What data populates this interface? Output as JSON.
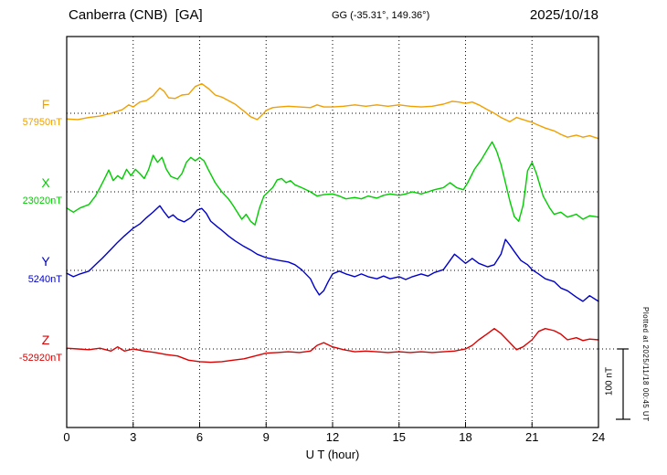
{
  "header": {
    "station": "Canberra (CNB)  [GA]",
    "coords": "GG (-35.31°, 149.36°)",
    "date": "2025/10/18"
  },
  "axis": {
    "xlabel": "U T (hour)",
    "ticks": [
      0,
      3,
      6,
      9,
      12,
      15,
      18,
      21,
      24
    ],
    "xmin": 0,
    "xmax": 24
  },
  "scale_bar": {
    "label": "100 nT",
    "nT": 100
  },
  "plotted_at": "Plotted at 2025/11/18 00:45 UT",
  "chart_data": {
    "type": "line",
    "title": "Canberra (CNB) [GA] magnetogram 2025/10/18",
    "xlabel": "U T (hour)",
    "x_range": [
      0,
      24
    ],
    "offset_unit": "nT relative to component baseline",
    "grid": "dotted vertical every 3 h, dotted horizontal at each baseline",
    "series": [
      {
        "name": "F",
        "baseline_label": "57950nT",
        "baseline_nT": 57950,
        "color": "#f0a000",
        "points": [
          [
            0,
            -8
          ],
          [
            0.5,
            -9
          ],
          [
            1,
            -6
          ],
          [
            1.5,
            -4
          ],
          [
            2,
            0
          ],
          [
            2.5,
            5
          ],
          [
            2.8,
            12
          ],
          [
            3,
            9
          ],
          [
            3.3,
            16
          ],
          [
            3.6,
            18
          ],
          [
            3.9,
            25
          ],
          [
            4.2,
            36
          ],
          [
            4.4,
            31
          ],
          [
            4.6,
            22
          ],
          [
            4.9,
            21
          ],
          [
            5.2,
            26
          ],
          [
            5.5,
            27
          ],
          [
            5.8,
            38
          ],
          [
            6.1,
            42
          ],
          [
            6.4,
            35
          ],
          [
            6.7,
            26
          ],
          [
            7,
            23
          ],
          [
            7.3,
            18
          ],
          [
            7.6,
            13
          ],
          [
            8,
            3
          ],
          [
            8.3,
            -5
          ],
          [
            8.6,
            -9
          ],
          [
            8.8,
            -3
          ],
          [
            9,
            4
          ],
          [
            9.3,
            8
          ],
          [
            9.6,
            9
          ],
          [
            10,
            10
          ],
          [
            10.5,
            9
          ],
          [
            11,
            8
          ],
          [
            11.3,
            12
          ],
          [
            11.6,
            9
          ],
          [
            12,
            9
          ],
          [
            12.5,
            10
          ],
          [
            13,
            12
          ],
          [
            13.5,
            10
          ],
          [
            14,
            12
          ],
          [
            14.5,
            10
          ],
          [
            15,
            12
          ],
          [
            15.5,
            10
          ],
          [
            16,
            9
          ],
          [
            16.5,
            10
          ],
          [
            17,
            13
          ],
          [
            17.4,
            17
          ],
          [
            17.7,
            16
          ],
          [
            18,
            14
          ],
          [
            18.3,
            16
          ],
          [
            18.6,
            12
          ],
          [
            19,
            5
          ],
          [
            19.3,
            0
          ],
          [
            19.6,
            -6
          ],
          [
            20,
            -12
          ],
          [
            20.3,
            -6
          ],
          [
            20.6,
            -9
          ],
          [
            21,
            -13
          ],
          [
            21.3,
            -17
          ],
          [
            21.6,
            -21
          ],
          [
            22,
            -25
          ],
          [
            22.3,
            -30
          ],
          [
            22.6,
            -34
          ],
          [
            23,
            -31
          ],
          [
            23.3,
            -34
          ],
          [
            23.6,
            -32
          ],
          [
            24,
            -36
          ]
        ]
      },
      {
        "name": "X",
        "baseline_label": "23020nT",
        "baseline_nT": 23020,
        "color": "#00cc00",
        "points": [
          [
            0,
            -23
          ],
          [
            0.3,
            -29
          ],
          [
            0.6,
            -23
          ],
          [
            1,
            -18
          ],
          [
            1.3,
            -6
          ],
          [
            1.5,
            6
          ],
          [
            1.7,
            18
          ],
          [
            1.9,
            31
          ],
          [
            2.1,
            16
          ],
          [
            2.3,
            23
          ],
          [
            2.5,
            18
          ],
          [
            2.7,
            32
          ],
          [
            2.9,
            23
          ],
          [
            3.1,
            32
          ],
          [
            3.3,
            26
          ],
          [
            3.5,
            19
          ],
          [
            3.7,
            32
          ],
          [
            3.9,
            52
          ],
          [
            4.1,
            42
          ],
          [
            4.3,
            49
          ],
          [
            4.5,
            32
          ],
          [
            4.7,
            22
          ],
          [
            5,
            18
          ],
          [
            5.2,
            26
          ],
          [
            5.4,
            42
          ],
          [
            5.6,
            49
          ],
          [
            5.8,
            44
          ],
          [
            6,
            49
          ],
          [
            6.2,
            44
          ],
          [
            6.4,
            31
          ],
          [
            6.7,
            13
          ],
          [
            7,
            0
          ],
          [
            7.3,
            -10
          ],
          [
            7.5,
            -19
          ],
          [
            7.7,
            -29
          ],
          [
            7.9,
            -39
          ],
          [
            8.1,
            -32
          ],
          [
            8.3,
            -42
          ],
          [
            8.5,
            -47
          ],
          [
            8.7,
            -23
          ],
          [
            8.9,
            -6
          ],
          [
            9.1,
            0
          ],
          [
            9.3,
            6
          ],
          [
            9.5,
            17
          ],
          [
            9.7,
            19
          ],
          [
            9.9,
            13
          ],
          [
            10.1,
            16
          ],
          [
            10.3,
            10
          ],
          [
            10.6,
            6
          ],
          [
            11,
            0
          ],
          [
            11.3,
            -6
          ],
          [
            11.6,
            -4
          ],
          [
            12,
            -3
          ],
          [
            12.3,
            -6
          ],
          [
            12.6,
            -10
          ],
          [
            13,
            -8
          ],
          [
            13.3,
            -10
          ],
          [
            13.6,
            -6
          ],
          [
            14,
            -9
          ],
          [
            14.3,
            -5
          ],
          [
            14.6,
            -3
          ],
          [
            15,
            -5
          ],
          [
            15.3,
            -3
          ],
          [
            15.6,
            0
          ],
          [
            16,
            -3
          ],
          [
            16.3,
            0
          ],
          [
            16.6,
            3
          ],
          [
            17,
            6
          ],
          [
            17.3,
            13
          ],
          [
            17.6,
            6
          ],
          [
            17.9,
            3
          ],
          [
            18.1,
            13
          ],
          [
            18.4,
            32
          ],
          [
            18.7,
            45
          ],
          [
            19,
            61
          ],
          [
            19.2,
            71
          ],
          [
            19.4,
            58
          ],
          [
            19.6,
            39
          ],
          [
            19.8,
            13
          ],
          [
            20,
            -13
          ],
          [
            20.2,
            -35
          ],
          [
            20.4,
            -42
          ],
          [
            20.6,
            -19
          ],
          [
            20.7,
            5
          ],
          [
            20.8,
            30
          ],
          [
            21,
            42
          ],
          [
            21.2,
            26
          ],
          [
            21.5,
            -6
          ],
          [
            21.8,
            -23
          ],
          [
            22,
            -32
          ],
          [
            22.3,
            -29
          ],
          [
            22.6,
            -36
          ],
          [
            23,
            -32
          ],
          [
            23.3,
            -39
          ],
          [
            23.6,
            -34
          ],
          [
            24,
            -36
          ]
        ]
      },
      {
        "name": "Y",
        "baseline_label": "5240nT",
        "baseline_nT": 5240,
        "color": "#0000cc",
        "points": [
          [
            0,
            -4
          ],
          [
            0.3,
            -9
          ],
          [
            0.6,
            -5
          ],
          [
            1,
            -1
          ],
          [
            1.3,
            8
          ],
          [
            1.6,
            17
          ],
          [
            2,
            30
          ],
          [
            2.3,
            40
          ],
          [
            2.6,
            49
          ],
          [
            3,
            60
          ],
          [
            3.3,
            66
          ],
          [
            3.6,
            75
          ],
          [
            3.9,
            83
          ],
          [
            4.2,
            92
          ],
          [
            4.4,
            83
          ],
          [
            4.6,
            75
          ],
          [
            4.8,
            79
          ],
          [
            5,
            73
          ],
          [
            5.3,
            69
          ],
          [
            5.6,
            75
          ],
          [
            5.9,
            86
          ],
          [
            6.1,
            88
          ],
          [
            6.3,
            81
          ],
          [
            6.5,
            70
          ],
          [
            6.8,
            62
          ],
          [
            7,
            57
          ],
          [
            7.3,
            49
          ],
          [
            7.6,
            42
          ],
          [
            8,
            34
          ],
          [
            8.3,
            29
          ],
          [
            8.6,
            23
          ],
          [
            9,
            18
          ],
          [
            9.3,
            16
          ],
          [
            9.6,
            14
          ],
          [
            10,
            12
          ],
          [
            10.3,
            8
          ],
          [
            10.6,
            1
          ],
          [
            11,
            -12
          ],
          [
            11.2,
            -25
          ],
          [
            11.4,
            -35
          ],
          [
            11.6,
            -29
          ],
          [
            11.8,
            -16
          ],
          [
            12,
            -5
          ],
          [
            12.3,
            -1
          ],
          [
            12.6,
            -5
          ],
          [
            13,
            -9
          ],
          [
            13.3,
            -5
          ],
          [
            13.6,
            -9
          ],
          [
            14,
            -12
          ],
          [
            14.3,
            -8
          ],
          [
            14.6,
            -12
          ],
          [
            15,
            -9
          ],
          [
            15.3,
            -13
          ],
          [
            15.6,
            -9
          ],
          [
            16,
            -5
          ],
          [
            16.3,
            -8
          ],
          [
            16.6,
            -3
          ],
          [
            17,
            1
          ],
          [
            17.3,
            14
          ],
          [
            17.5,
            23
          ],
          [
            17.7,
            18
          ],
          [
            18,
            10
          ],
          [
            18.3,
            17
          ],
          [
            18.6,
            10
          ],
          [
            19,
            5
          ],
          [
            19.3,
            8
          ],
          [
            19.6,
            23
          ],
          [
            19.8,
            44
          ],
          [
            20,
            36
          ],
          [
            20.2,
            27
          ],
          [
            20.5,
            14
          ],
          [
            20.8,
            8
          ],
          [
            21,
            1
          ],
          [
            21.3,
            -5
          ],
          [
            21.6,
            -12
          ],
          [
            22,
            -16
          ],
          [
            22.3,
            -25
          ],
          [
            22.6,
            -29
          ],
          [
            23,
            -38
          ],
          [
            23.3,
            -44
          ],
          [
            23.6,
            -36
          ],
          [
            24,
            -44
          ]
        ]
      },
      {
        "name": "Z",
        "baseline_label": "-52920nT",
        "baseline_nT": -52920,
        "color": "#dd0000",
        "points": [
          [
            0,
            1
          ],
          [
            0.5,
            0
          ],
          [
            1,
            -1
          ],
          [
            1.5,
            1
          ],
          [
            2,
            -3
          ],
          [
            2.3,
            3
          ],
          [
            2.6,
            -3
          ],
          [
            3,
            0
          ],
          [
            3.5,
            -3
          ],
          [
            4,
            -5
          ],
          [
            4.5,
            -8
          ],
          [
            5,
            -10
          ],
          [
            5.5,
            -16
          ],
          [
            6,
            -18
          ],
          [
            6.5,
            -19
          ],
          [
            7,
            -18
          ],
          [
            7.5,
            -16
          ],
          [
            8,
            -14
          ],
          [
            8.5,
            -10
          ],
          [
            9,
            -6
          ],
          [
            9.5,
            -5
          ],
          [
            10,
            -4
          ],
          [
            10.5,
            -5
          ],
          [
            11,
            -3
          ],
          [
            11.3,
            5
          ],
          [
            11.6,
            9
          ],
          [
            12,
            3
          ],
          [
            12.5,
            -1
          ],
          [
            13,
            -4
          ],
          [
            13.5,
            -3
          ],
          [
            14,
            -4
          ],
          [
            14.5,
            -5
          ],
          [
            15,
            -4
          ],
          [
            15.5,
            -5
          ],
          [
            16,
            -4
          ],
          [
            16.5,
            -5
          ],
          [
            17,
            -4
          ],
          [
            17.5,
            -3
          ],
          [
            18,
            0
          ],
          [
            18.3,
            5
          ],
          [
            18.6,
            13
          ],
          [
            19,
            22
          ],
          [
            19.3,
            29
          ],
          [
            19.6,
            22
          ],
          [
            20,
            9
          ],
          [
            20.3,
            -1
          ],
          [
            20.6,
            3
          ],
          [
            21,
            13
          ],
          [
            21.3,
            25
          ],
          [
            21.6,
            29
          ],
          [
            22,
            26
          ],
          [
            22.3,
            21
          ],
          [
            22.6,
            13
          ],
          [
            23,
            16
          ],
          [
            23.3,
            12
          ],
          [
            23.6,
            14
          ],
          [
            24,
            13
          ]
        ]
      }
    ]
  }
}
